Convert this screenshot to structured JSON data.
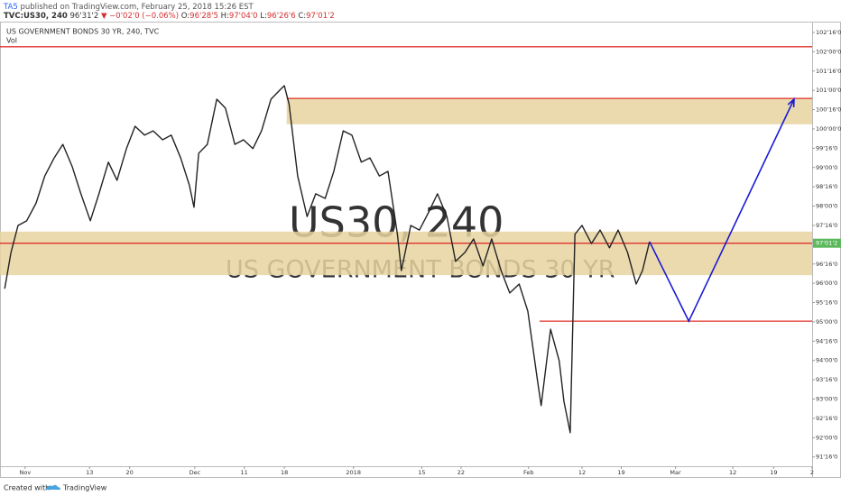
{
  "header": {
    "author": "TA5",
    "published": "published on TradingView.com, February 25, 2018 15:26 EST",
    "symbol": "TVC:US30, 240",
    "last": "96'31'2",
    "change": "▼ −0'02'0 (−0.06%)",
    "ohlc": [
      {
        "key": "O:",
        "value": "96'28'5"
      },
      {
        "key": "H:",
        "value": "97'04'0"
      },
      {
        "key": "L:",
        "value": "96'26'6"
      },
      {
        "key": "C:",
        "value": "97'01'2"
      }
    ]
  },
  "chart_data": {
    "type": "line",
    "title": "US GOVERNMENT BONDS 30 YR, 240, TVC",
    "subtitle": "Vol",
    "watermark": [
      "US30, 240",
      "US GOVERNMENT BONDS 30 YR"
    ],
    "xlim": [
      -3.2,
      100.2
    ],
    "ylim": [
      91.26,
      102.78
    ],
    "xticks": [
      {
        "value": 0,
        "label": "Nov"
      },
      {
        "value": 8.2,
        "label": "13"
      },
      {
        "value": 13.3,
        "label": "20"
      },
      {
        "value": 21.6,
        "label": "Dec"
      },
      {
        "value": 27.9,
        "label": "11"
      },
      {
        "value": 33,
        "label": "18"
      },
      {
        "value": 41.8,
        "label": "2018"
      },
      {
        "value": 50.5,
        "label": "15"
      },
      {
        "value": 55.5,
        "label": "22"
      },
      {
        "value": 64.1,
        "label": "Feb"
      },
      {
        "value": 70.9,
        "label": "12"
      },
      {
        "value": 75.9,
        "label": "19"
      },
      {
        "value": 82.8,
        "label": "Mar"
      },
      {
        "value": 90.1,
        "label": "12"
      },
      {
        "value": 95.3,
        "label": "19"
      },
      {
        "value": 100.2,
        "label": "2"
      }
    ],
    "yticks": [
      {
        "value": 102.5,
        "label": "102'16'0"
      },
      {
        "value": 102,
        "label": "102'00'0"
      },
      {
        "value": 101.5,
        "label": "101'16'0"
      },
      {
        "value": 101,
        "label": "101'00'0"
      },
      {
        "value": 100.5,
        "label": "100'16'0"
      },
      {
        "value": 100,
        "label": "100'00'0"
      },
      {
        "value": 99.5,
        "label": "99'16'0"
      },
      {
        "value": 99,
        "label": "99'00'0"
      },
      {
        "value": 98.5,
        "label": "98'16'0"
      },
      {
        "value": 98,
        "label": "98'00'0"
      },
      {
        "value": 97.5,
        "label": "97'16'0"
      },
      {
        "value": 96.5,
        "label": "96'16'0"
      },
      {
        "value": 96,
        "label": "96'00'0"
      },
      {
        "value": 95.5,
        "label": "95'16'0"
      },
      {
        "value": 95,
        "label": "95'00'0"
      },
      {
        "value": 94.5,
        "label": "94'16'0"
      },
      {
        "value": 94,
        "label": "94'00'0"
      },
      {
        "value": 93.5,
        "label": "93'16'0"
      },
      {
        "value": 93,
        "label": "93'00'0"
      },
      {
        "value": 92.5,
        "label": "92'16'0"
      },
      {
        "value": 92,
        "label": "92'00'0"
      },
      {
        "value": 91.5,
        "label": "91'16'0"
      }
    ],
    "series": [
      {
        "color": "#222222",
        "x": [
          -2.6,
          -1.8,
          -0.9,
          0.2,
          1.4,
          2.5,
          3.7,
          4.8,
          6.0,
          7.1,
          8.3,
          9.4,
          10.6,
          11.7,
          12.9,
          14.0,
          15.2,
          16.3,
          17.5,
          18.6,
          19.8,
          20.9,
          21.5,
          22.1,
          23.2,
          24.4,
          25.5,
          26.7,
          27.8,
          29.0,
          30.1,
          31.3,
          32.4,
          33.0,
          33.6,
          34.7,
          35.9,
          37.0,
          38.2,
          39.3,
          40.5,
          41.6,
          42.8,
          43.9,
          45.1,
          46.2,
          47.4,
          47.9,
          49.1,
          50.2,
          51.4,
          52.5,
          53.7,
          54.8,
          56.0,
          57.1,
          58.3,
          59.4,
          60.6,
          61.7,
          62.9,
          64.0,
          65.2,
          65.7,
          66.9,
          68.0,
          68.6,
          69.4,
          70.0,
          70.9,
          72.1,
          73.2,
          74.4,
          75.5,
          76.7,
          77.8,
          78.6,
          79.5
        ],
        "values": [
          95.86,
          96.8,
          97.5,
          97.62,
          98.08,
          98.78,
          99.25,
          99.6,
          99.02,
          98.32,
          97.62,
          98.32,
          99.14,
          98.67,
          99.49,
          100.07,
          99.84,
          99.95,
          99.72,
          99.84,
          99.25,
          98.55,
          97.97,
          99.37,
          99.6,
          100.77,
          100.54,
          99.6,
          99.72,
          99.49,
          99.95,
          100.77,
          101.0,
          101.12,
          100.65,
          98.78,
          97.73,
          98.32,
          98.2,
          98.9,
          99.95,
          99.84,
          99.14,
          99.25,
          98.78,
          98.9,
          97.27,
          96.33,
          97.5,
          97.38,
          97.85,
          98.32,
          97.73,
          96.57,
          96.8,
          97.15,
          96.45,
          97.15,
          96.33,
          95.75,
          95.98,
          95.28,
          93.53,
          92.83,
          94.81,
          93.99,
          92.94,
          92.13,
          97.27,
          97.5,
          97.03,
          97.38,
          96.92,
          97.38,
          96.8,
          95.98,
          96.33,
          97.08
        ]
      }
    ],
    "zones": [
      {
        "low": 96.21,
        "high": 97.34,
        "color": "#e8d4a0"
      },
      {
        "low": 100.12,
        "high": 100.79,
        "from": 33.3,
        "color": "#e8d4a0"
      }
    ],
    "levels": [
      {
        "value": 102.13,
        "color": "#e0302a"
      },
      {
        "value": 100.79,
        "from": 33.3,
        "color": "#e0302a"
      },
      {
        "value": 95.02,
        "from": 65.5,
        "color": "#e0302a"
      }
    ],
    "price_label": {
      "value": 97.039,
      "label": "97'01'2",
      "color": "#e0302a"
    },
    "projection": {
      "color": "#1a1ad6",
      "x": [
        79.5,
        84.5,
        97.9
      ],
      "values": [
        97.08,
        95.02,
        100.77
      ]
    }
  },
  "footer": {
    "text": "Created with",
    "brand": "TradingView"
  }
}
